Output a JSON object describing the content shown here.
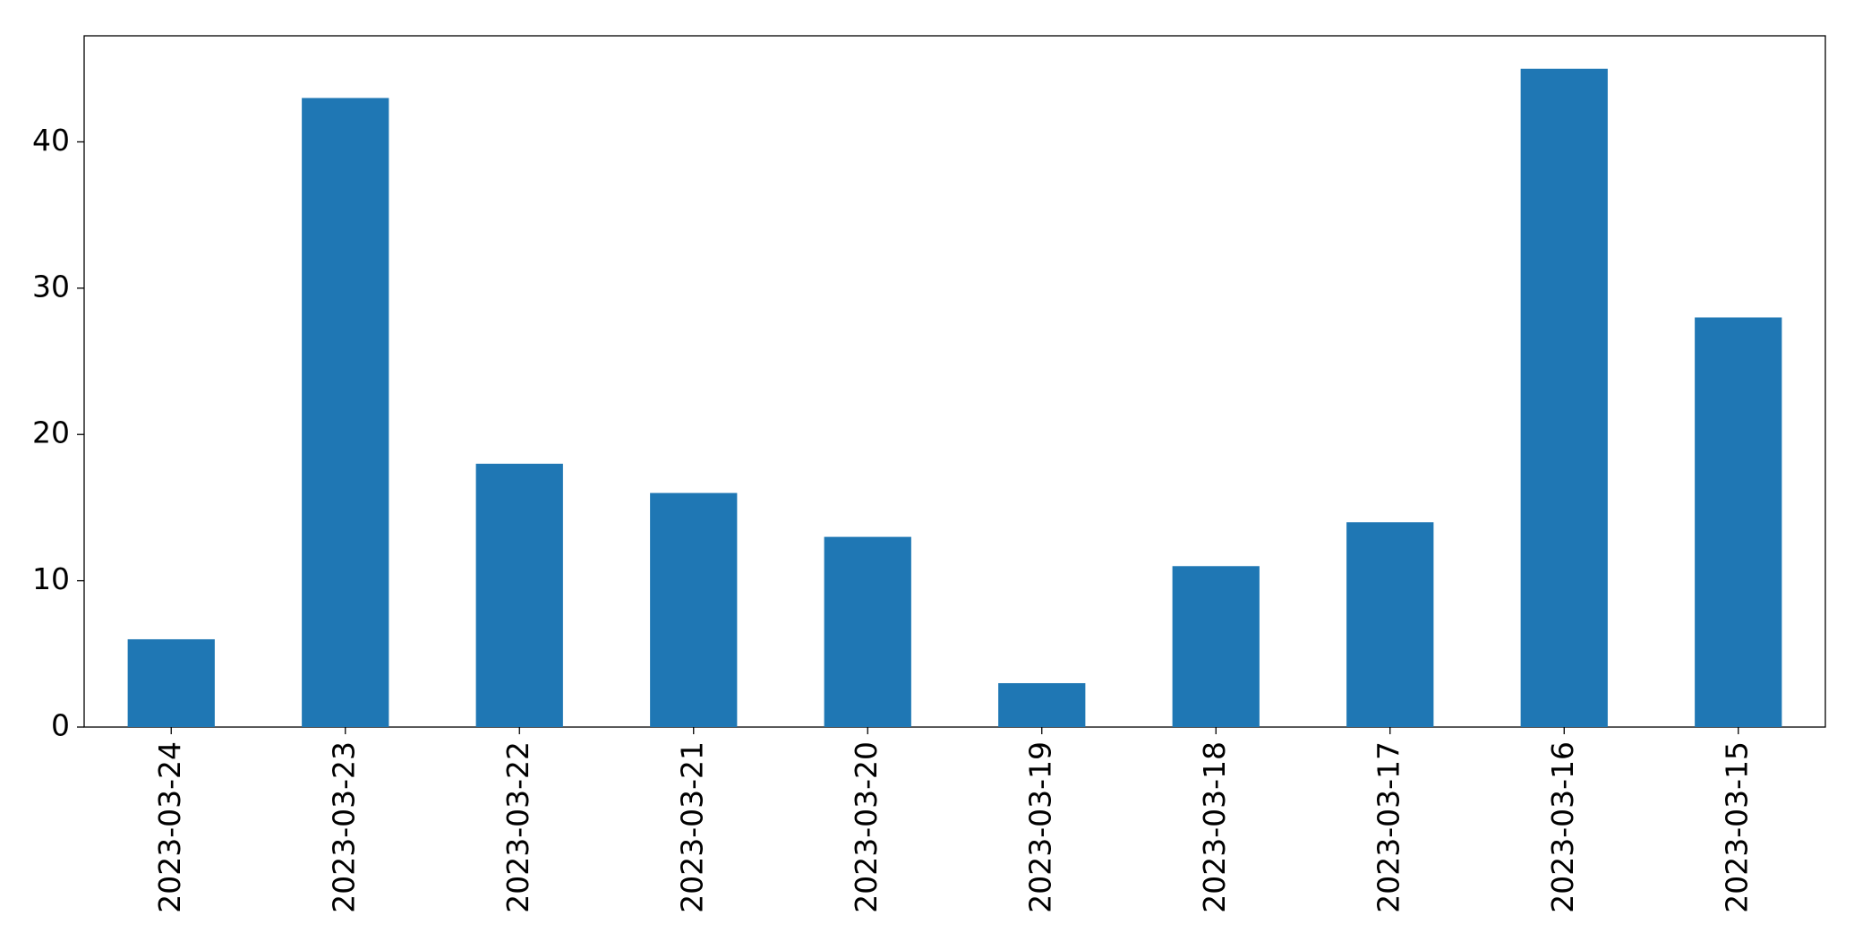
{
  "chart_data": {
    "type": "bar",
    "categories": [
      "2023-03-24",
      "2023-03-23",
      "2023-03-22",
      "2023-03-21",
      "2023-03-20",
      "2023-03-19",
      "2023-03-18",
      "2023-03-17",
      "2023-03-16",
      "2023-03-15"
    ],
    "values": [
      6,
      43,
      18,
      16,
      13,
      3,
      11,
      14,
      45,
      28
    ],
    "color": "#1f77b4",
    "ylim": [
      0,
      47.25
    ],
    "yticks": [
      0,
      10,
      20,
      30,
      40
    ],
    "grid": false
  }
}
